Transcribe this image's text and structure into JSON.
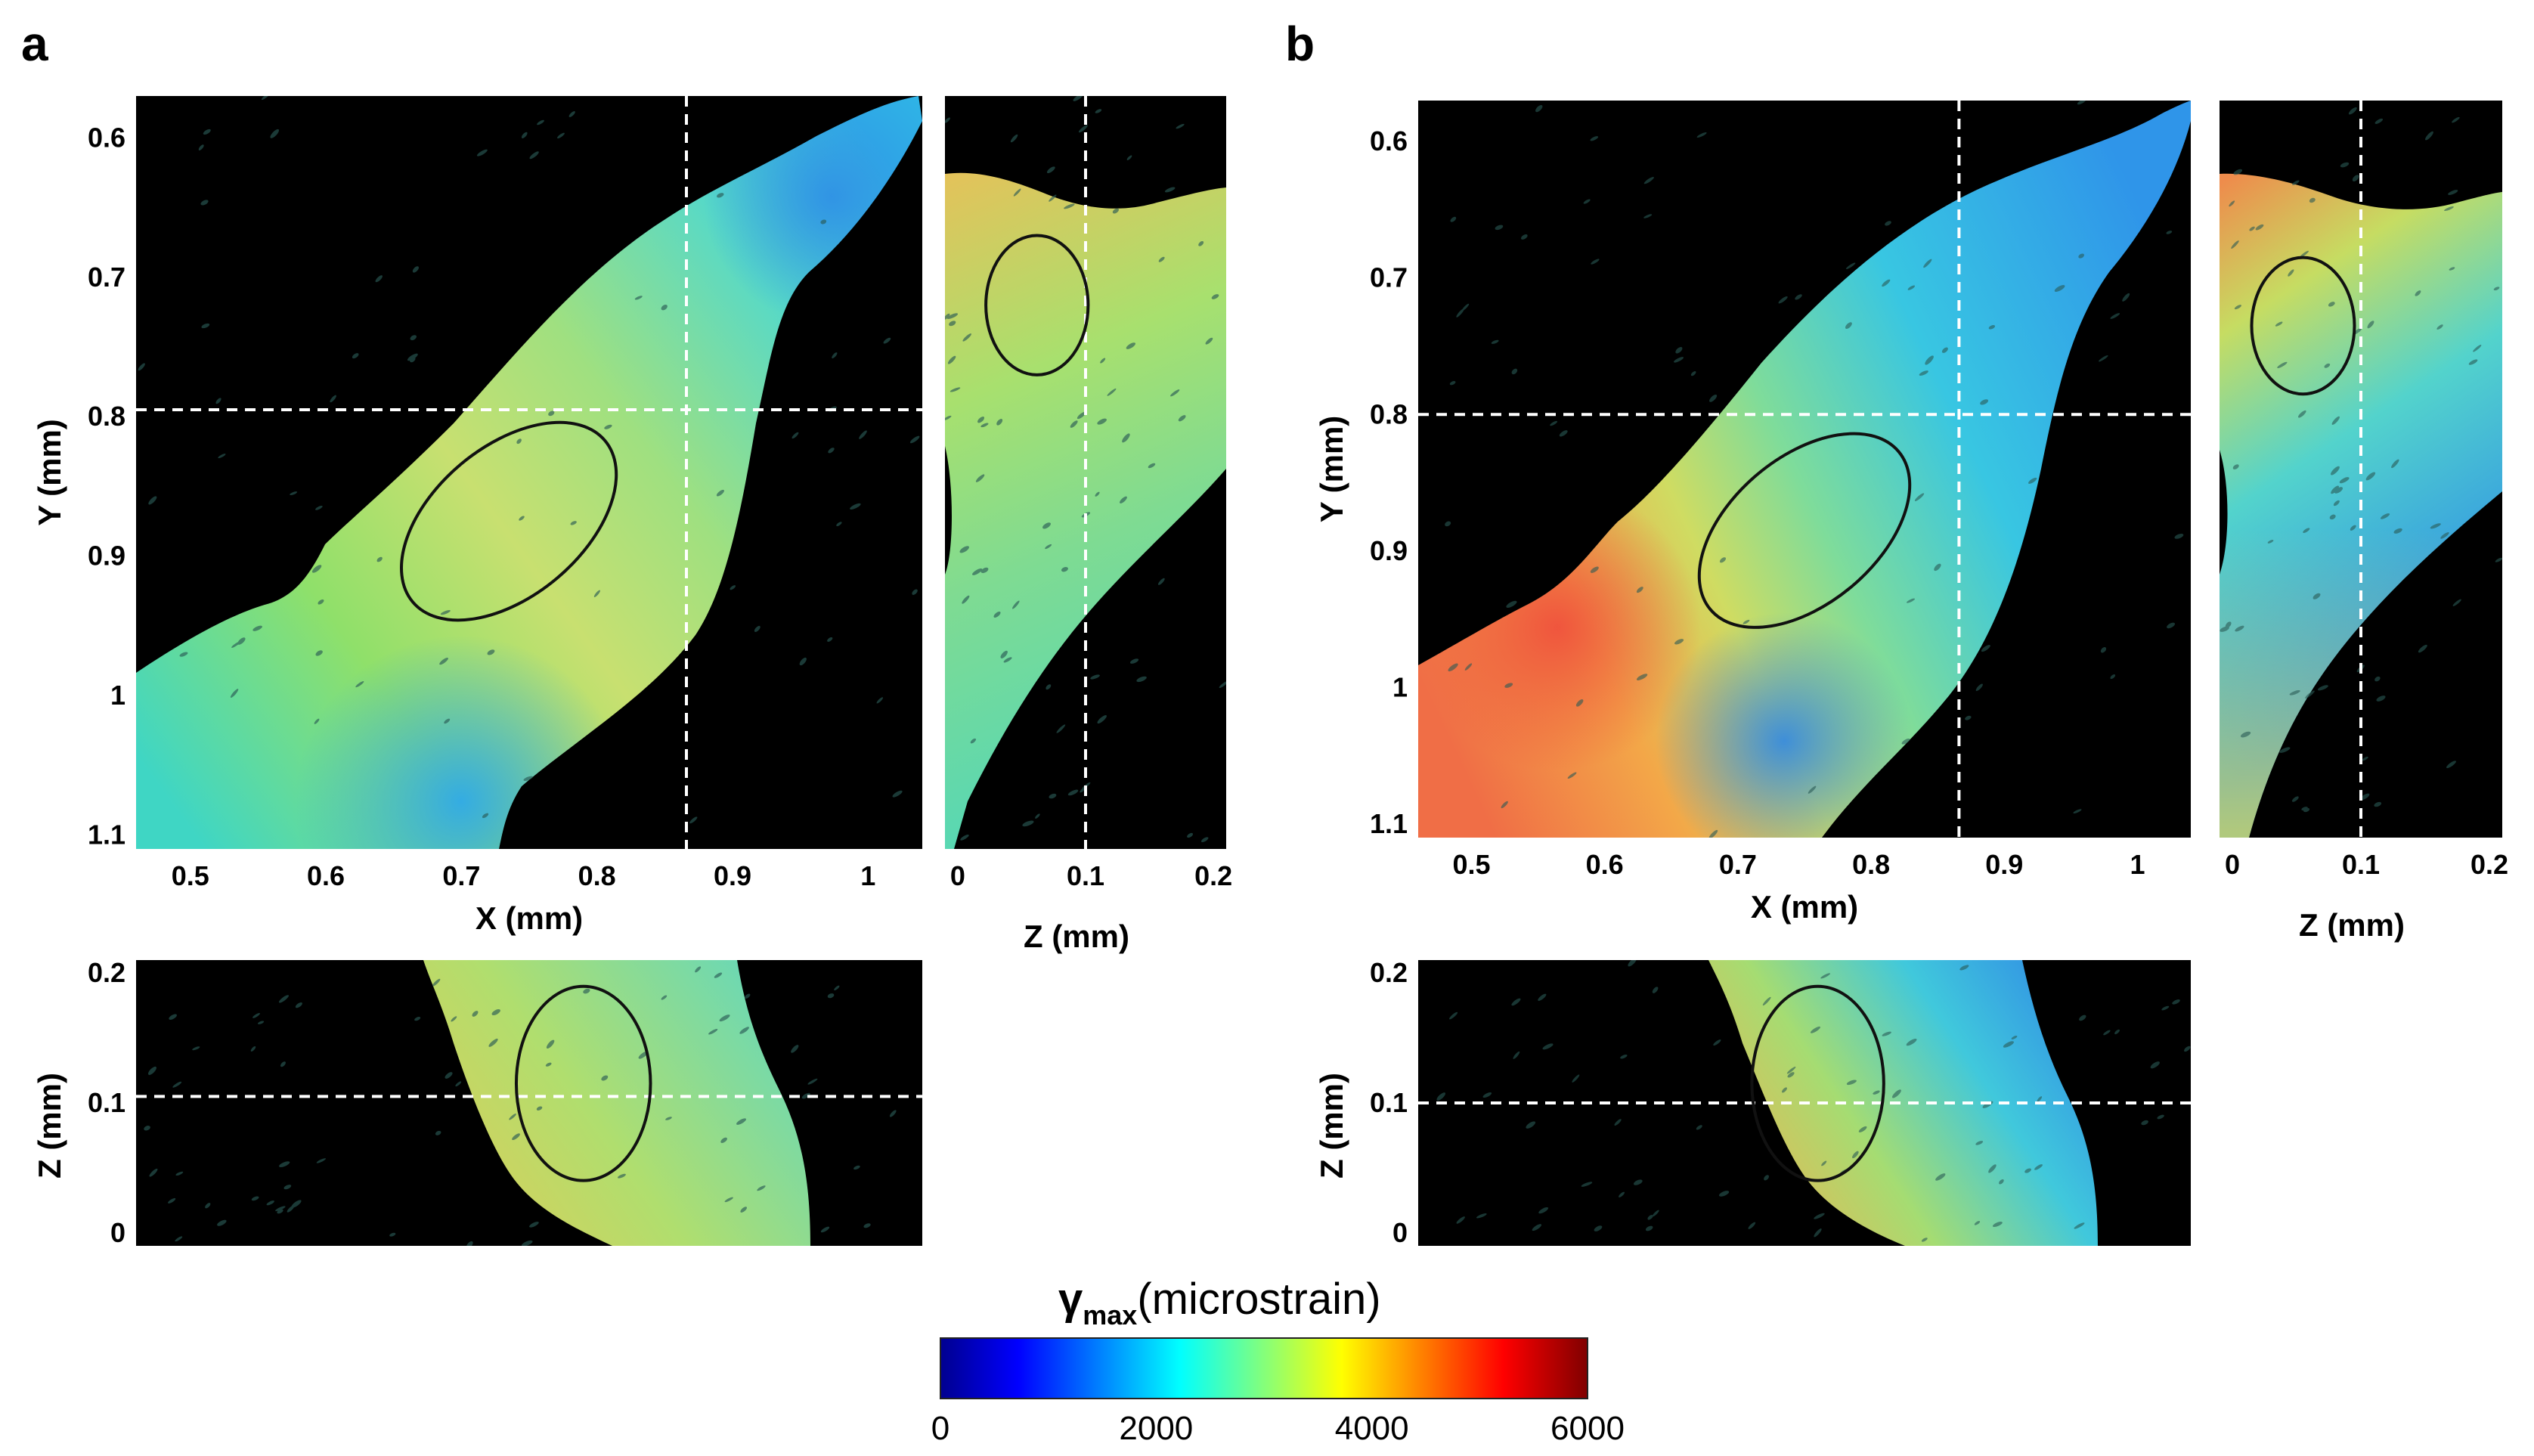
{
  "panels": {
    "a": {
      "label": "a"
    },
    "b": {
      "label": "b"
    }
  },
  "colorbar": {
    "title_symbol": "γ",
    "title_subscript": "max",
    "title_unit": "(microstrain)",
    "ticks": [
      "0",
      "2000",
      "4000",
      "6000"
    ],
    "range": [
      0,
      6000
    ],
    "colormap": "jet",
    "colors": [
      "#00008f",
      "#0000ff",
      "#00ffff",
      "#ffff00",
      "#ff0000",
      "#800000"
    ]
  },
  "colors": {
    "background": "#000000",
    "crosshair": "#ffffff",
    "region_outline": "#111111"
  },
  "chart_data": [
    {
      "type": "heatmap",
      "panel": "a",
      "view": "XY",
      "xlabel": "X (mm)",
      "ylabel": "Y (mm)",
      "xlim": [
        0.46,
        1.04
      ],
      "ylim": [
        0.57,
        1.11
      ],
      "xticks": [
        "0.5",
        "0.6",
        "0.7",
        "0.8",
        "0.9",
        "1"
      ],
      "yticks": [
        "0.6",
        "0.7",
        "0.8",
        "0.9",
        "1",
        "1.1"
      ],
      "crosshair": {
        "x": 0.866,
        "y": 0.795
      },
      "region": {
        "cx": 0.735,
        "cy": 0.875,
        "rx": 0.055,
        "ry": 0.09
      },
      "strain_range": [
        1500,
        4200
      ]
    },
    {
      "type": "heatmap",
      "panel": "a",
      "view": "ZY",
      "xlabel": "Z (mm)",
      "ylabel": "",
      "xlim": [
        -0.01,
        0.21
      ],
      "ylim": [
        0.57,
        1.11
      ],
      "xticks": [
        "0",
        "0.1",
        "0.2"
      ],
      "crosshair": {
        "z": 0.1
      },
      "region": {
        "cz": 0.062,
        "cy": 0.72,
        "rz": 0.04,
        "ry": 0.05
      },
      "strain_range": [
        2500,
        4200
      ]
    },
    {
      "type": "heatmap",
      "panel": "a",
      "view": "XZ",
      "xlabel": "",
      "ylabel": "Z (mm)",
      "xlim": [
        0.46,
        1.04
      ],
      "zlim": [
        -0.01,
        0.21
      ],
      "yticks": [
        "0.2",
        "0.1",
        "0"
      ],
      "crosshair": {
        "z": 0.105
      },
      "region": {
        "cx": 0.79,
        "cz": 0.115,
        "rx": 0.055,
        "rz": 0.065
      },
      "strain_range": [
        2800,
        4300
      ]
    },
    {
      "type": "heatmap",
      "panel": "b",
      "view": "XY",
      "xlabel": "X (mm)",
      "ylabel": "Y (mm)",
      "xlim": [
        0.46,
        1.04
      ],
      "ylim": [
        0.57,
        1.11
      ],
      "xticks": [
        "0.5",
        "0.6",
        "0.7",
        "0.8",
        "0.9",
        "1"
      ],
      "yticks": [
        "0.6",
        "0.7",
        "0.8",
        "0.9",
        "1",
        "1.1"
      ],
      "crosshair": {
        "x": 0.866,
        "y": 0.8
      },
      "region": {
        "cx": 0.75,
        "cy": 0.885,
        "rx": 0.055,
        "ry": 0.09
      },
      "strain_range": [
        1500,
        5200
      ]
    },
    {
      "type": "heatmap",
      "panel": "b",
      "view": "ZY",
      "xlabel": "Z (mm)",
      "ylabel": "",
      "xlim": [
        -0.01,
        0.21
      ],
      "ylim": [
        0.57,
        1.11
      ],
      "xticks": [
        "0",
        "0.1",
        "0.2"
      ],
      "crosshair": {
        "z": 0.1
      },
      "region": {
        "cz": 0.055,
        "cy": 0.735,
        "rz": 0.04,
        "ry": 0.05
      },
      "strain_range": [
        1800,
        4600
      ]
    },
    {
      "type": "heatmap",
      "panel": "b",
      "view": "XZ",
      "xlabel": "",
      "ylabel": "Z (mm)",
      "xlim": [
        0.46,
        1.04
      ],
      "zlim": [
        -0.01,
        0.21
      ],
      "yticks": [
        "0.2",
        "0.1",
        "0"
      ],
      "crosshair": {
        "z": 0.1
      },
      "region": {
        "cx": 0.76,
        "cz": 0.115,
        "rx": 0.055,
        "rz": 0.065
      },
      "strain_range": [
        1600,
        4600
      ]
    }
  ]
}
